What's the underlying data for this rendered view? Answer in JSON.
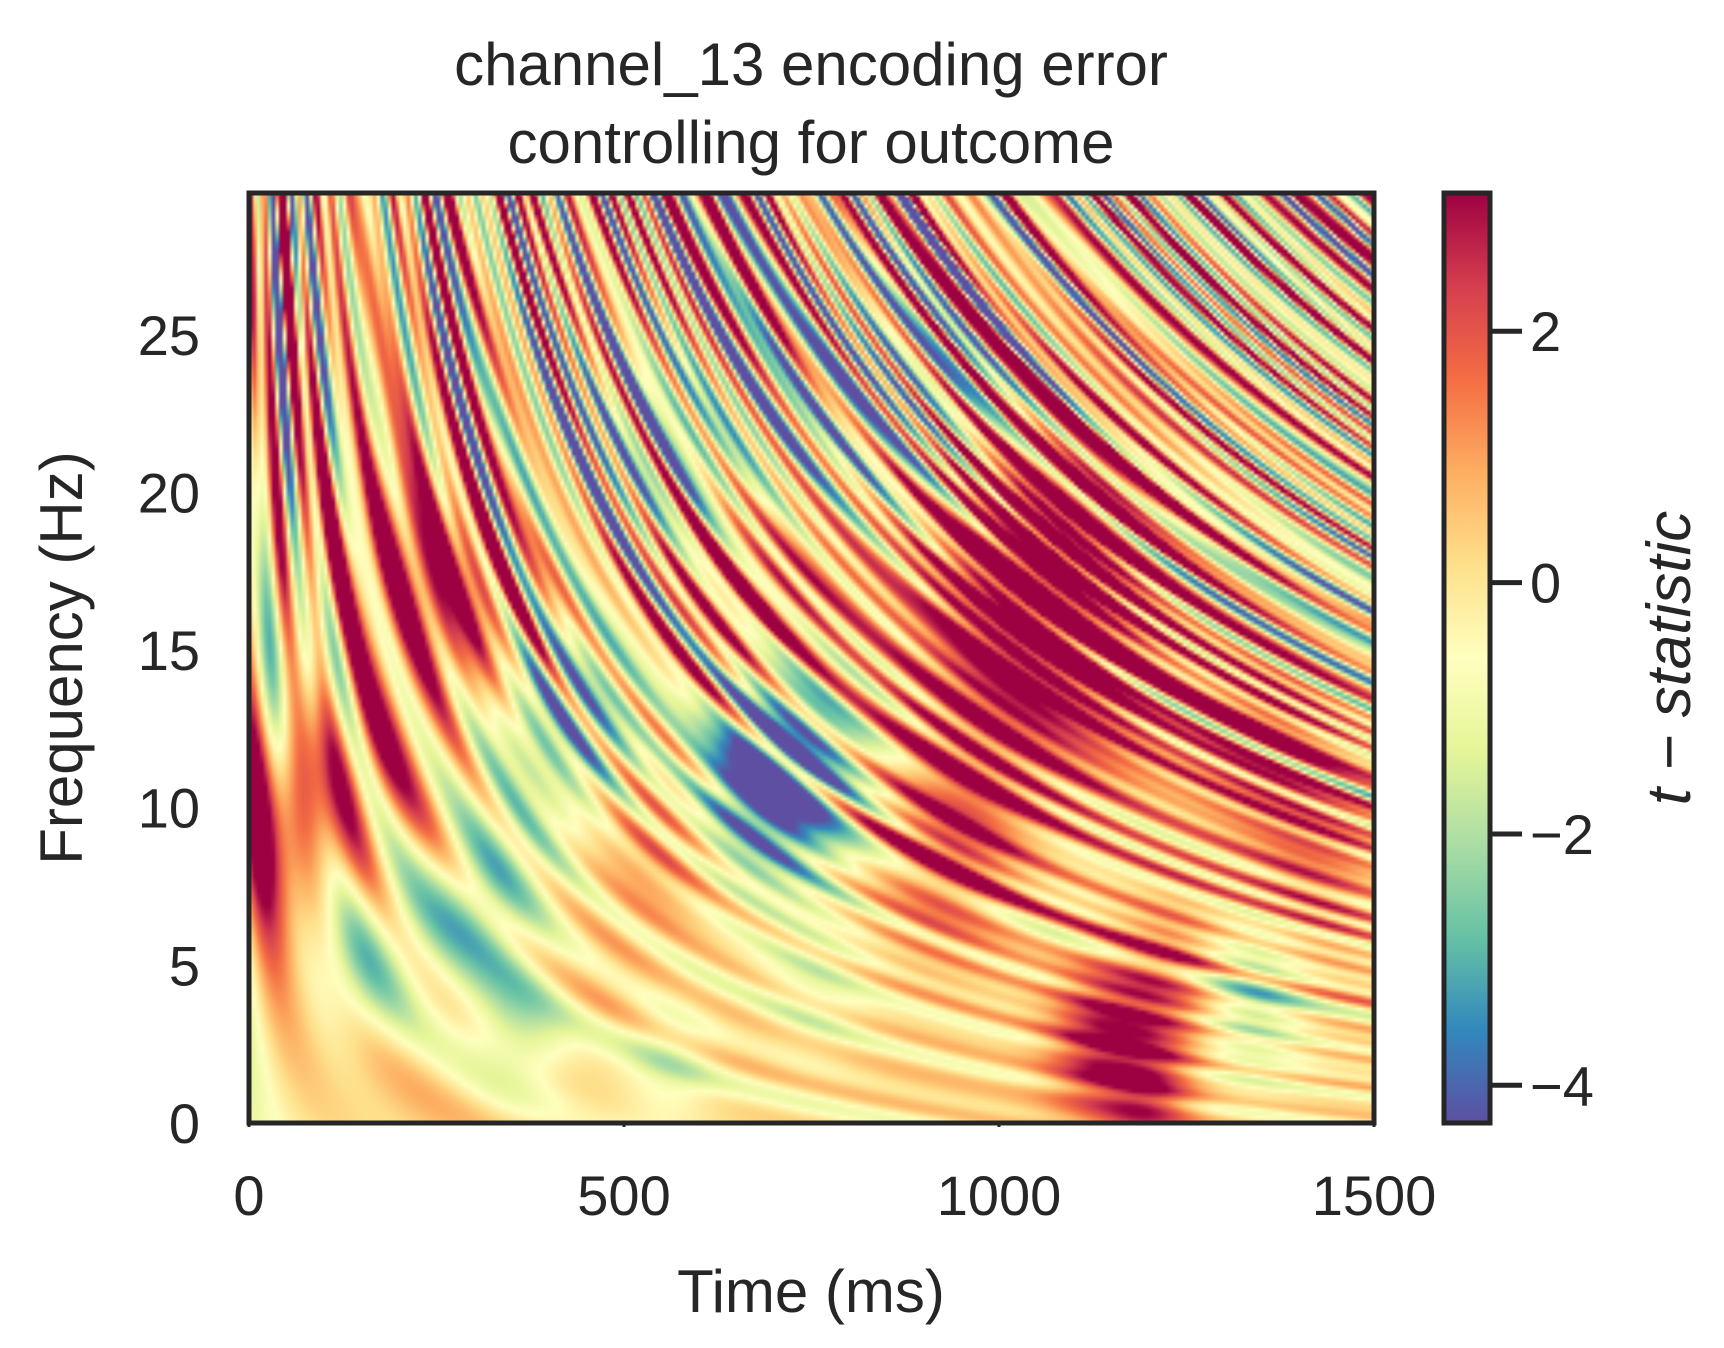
{
  "chart_data": {
    "type": "heatmap",
    "title_lines": [
      "channel_13 encoding error",
      "controlling for outcome"
    ],
    "xlabel": "Time (ms)",
    "ylabel": "Frequency (Hz)",
    "xlim": [
      0,
      1500
    ],
    "ylim": [
      0,
      29.5
    ],
    "x_ticks": [
      0,
      500,
      1000,
      1500
    ],
    "x_tick_labels": [
      "0",
      "500",
      "1000",
      "1500"
    ],
    "y_ticks": [
      0,
      5,
      10,
      15,
      20,
      25
    ],
    "y_tick_labels": [
      "0",
      "5",
      "10",
      "15",
      "20",
      "25"
    ],
    "colorbar": {
      "label": "t − statistic",
      "range": [
        -4.3,
        3.1
      ],
      "ticks": [
        -4,
        -2,
        0,
        2
      ],
      "tick_labels": [
        "−4",
        "−2",
        "0",
        "2"
      ],
      "colormap": "Spectral_r",
      "colors": [
        "#5e4fa2",
        "#3288bd",
        "#66c2a5",
        "#abdda4",
        "#e6f598",
        "#ffffbf",
        "#fee08b",
        "#fdae61",
        "#f46d43",
        "#d53e4f",
        "#9e0142"
      ]
    },
    "grid": false,
    "blobs": [
      {
        "t": 1130,
        "f": 2.5,
        "v": 2.6
      },
      {
        "t": 1220,
        "f": 4.5,
        "v": 1.8
      },
      {
        "t": 1200,
        "f": 1.0,
        "v": 2.2
      },
      {
        "t": 1050,
        "f": 17.0,
        "v": 2.9
      },
      {
        "t": 1060,
        "f": 19.5,
        "v": 2.5
      },
      {
        "t": 1360,
        "f": 12.5,
        "v": 2.3
      },
      {
        "t": 1130,
        "f": 13.5,
        "v": 1.8
      },
      {
        "t": 940,
        "f": 8.5,
        "v": 2.0
      },
      {
        "t": 960,
        "f": 12.0,
        "v": 1.6
      },
      {
        "t": 560,
        "f": 9.0,
        "v": 1.5
      },
      {
        "t": 120,
        "f": 11.5,
        "v": 1.6
      },
      {
        "t": 30,
        "f": 9.5,
        "v": 1.6
      },
      {
        "t": 180,
        "f": 17.5,
        "v": 2.0
      },
      {
        "t": 300,
        "f": 16.5,
        "v": 1.8
      },
      {
        "t": 620,
        "f": 17.5,
        "v": 1.6
      },
      {
        "t": 730,
        "f": 17.0,
        "v": 1.3
      },
      {
        "t": 1420,
        "f": 8.0,
        "v": 1.4
      },
      {
        "t": 700,
        "f": 10.5,
        "v": -3.3
      },
      {
        "t": 690,
        "f": 11.5,
        "v": -2.5
      },
      {
        "t": 420,
        "f": 13.0,
        "v": -3.0
      },
      {
        "t": 310,
        "f": 7.0,
        "v": -2.5
      },
      {
        "t": 150,
        "f": 5.0,
        "v": -1.8
      },
      {
        "t": 360,
        "f": 3.0,
        "v": -1.6
      },
      {
        "t": 1340,
        "f": 4.0,
        "v": -2.0
      },
      {
        "t": 80,
        "f": 15.0,
        "v": -1.6
      },
      {
        "t": 490,
        "f": 21.0,
        "v": -2.0
      },
      {
        "t": 700,
        "f": 21.0,
        "v": -1.5
      },
      {
        "t": 880,
        "f": 23.0,
        "v": -1.5
      },
      {
        "t": 1450,
        "f": 16.0,
        "v": -1.4
      },
      {
        "t": 560,
        "f": 2.0,
        "v": -1.2
      },
      {
        "t": 760,
        "f": 4.5,
        "v": -1.0
      }
    ]
  }
}
